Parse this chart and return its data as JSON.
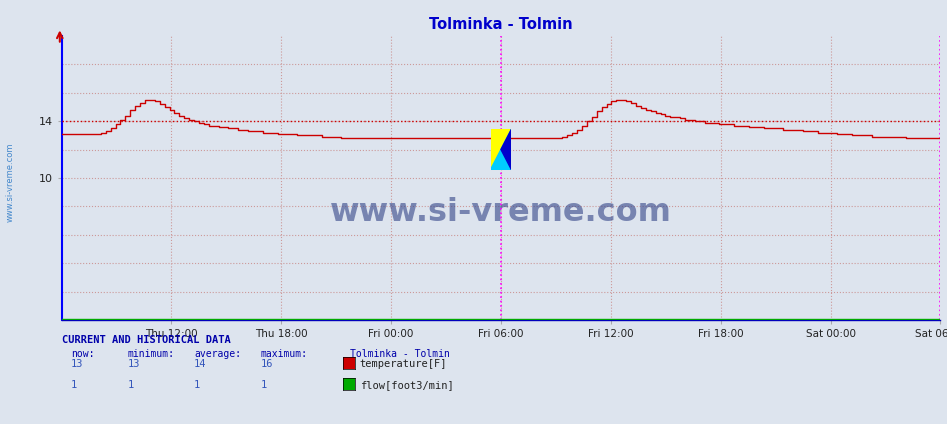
{
  "title": "Tolminka - Tolmin",
  "title_color": "#0000cc",
  "bg_color": "#dde4ee",
  "plot_bg_color": "#dde4ee",
  "yticks": [
    10,
    14
  ],
  "ylim": [
    0,
    20
  ],
  "xlim": [
    0,
    576
  ],
  "xtick_labels": [
    "Thu 12:00",
    "Thu 18:00",
    "Fri 00:00",
    "Fri 06:00",
    "Fri 12:00",
    "Fri 18:00",
    "Sat 00:00",
    "Sat 06:00"
  ],
  "xtick_positions": [
    72,
    144,
    216,
    288,
    360,
    432,
    504,
    576
  ],
  "avg_line_y": 14,
  "avg_line_color": "#cc0000",
  "vline_color": "#ff00ff",
  "vline_x1": 288,
  "vline_x2": 576,
  "grid_color": "#cc9999",
  "watermark_text": "www.si-vreme.com",
  "watermark_color": "#334488",
  "sidebar_text": "www.si-vreme.com",
  "sidebar_color": "#4488cc",
  "legend_title": "Tolminka - Tolmin",
  "legend_items": [
    {
      "label": "temperature[F]",
      "color": "#cc0000"
    },
    {
      "label": "flow[foot3/min]",
      "color": "#00aa00"
    }
  ],
  "stats_header": "CURRENT AND HISTORICAL DATA",
  "stats_cols": [
    "now:",
    "minimum:",
    "average:",
    "maximum:"
  ],
  "stats_rows": [
    {
      "vals": [
        "13",
        "13",
        "14",
        "16"
      ]
    },
    {
      "vals": [
        "1",
        "1",
        "1",
        "1"
      ]
    }
  ],
  "temp_data": [
    13.1,
    13.1,
    13.1,
    13.1,
    13.1,
    13.1,
    13.1,
    13.1,
    13.2,
    13.3,
    13.5,
    13.8,
    14.1,
    14.4,
    14.8,
    15.1,
    15.3,
    15.5,
    15.5,
    15.4,
    15.2,
    15.0,
    14.8,
    14.6,
    14.4,
    14.2,
    14.1,
    14.0,
    13.9,
    13.8,
    13.7,
    13.7,
    13.6,
    13.6,
    13.5,
    13.5,
    13.4,
    13.4,
    13.3,
    13.3,
    13.3,
    13.2,
    13.2,
    13.2,
    13.1,
    13.1,
    13.1,
    13.1,
    13.0,
    13.0,
    13.0,
    13.0,
    13.0,
    12.9,
    12.9,
    12.9,
    12.9,
    12.8,
    12.8,
    12.8,
    12.8,
    12.8,
    12.8,
    12.8,
    12.8,
    12.8,
    12.8,
    12.8,
    12.8,
    12.8,
    12.8,
    12.8,
    12.8,
    12.8,
    12.8,
    12.8,
    12.8,
    12.8,
    12.8,
    12.8,
    12.8,
    12.8,
    12.8,
    12.8,
    12.8,
    12.8,
    12.8,
    12.8,
    12.8,
    12.8,
    12.8,
    12.8,
    12.8,
    12.8,
    12.8,
    12.8,
    12.8,
    12.8,
    12.8,
    12.8,
    12.8,
    12.8,
    12.9,
    13.0,
    13.2,
    13.4,
    13.7,
    14.0,
    14.3,
    14.7,
    15.0,
    15.2,
    15.4,
    15.5,
    15.5,
    15.4,
    15.3,
    15.1,
    14.9,
    14.8,
    14.7,
    14.6,
    14.5,
    14.4,
    14.3,
    14.3,
    14.2,
    14.1,
    14.1,
    14.0,
    14.0,
    13.9,
    13.9,
    13.9,
    13.8,
    13.8,
    13.8,
    13.7,
    13.7,
    13.7,
    13.6,
    13.6,
    13.6,
    13.5,
    13.5,
    13.5,
    13.5,
    13.4,
    13.4,
    13.4,
    13.4,
    13.3,
    13.3,
    13.3,
    13.2,
    13.2,
    13.2,
    13.2,
    13.1,
    13.1,
    13.1,
    13.0,
    13.0,
    13.0,
    13.0,
    12.9,
    12.9,
    12.9,
    12.9,
    12.9,
    12.9,
    12.9,
    12.8,
    12.8,
    12.8,
    12.8,
    12.8,
    12.8,
    12.8,
    12.8
  ],
  "flow_data_value": 0.08,
  "temp_color": "#cc0000",
  "flow_color": "#00aa00"
}
